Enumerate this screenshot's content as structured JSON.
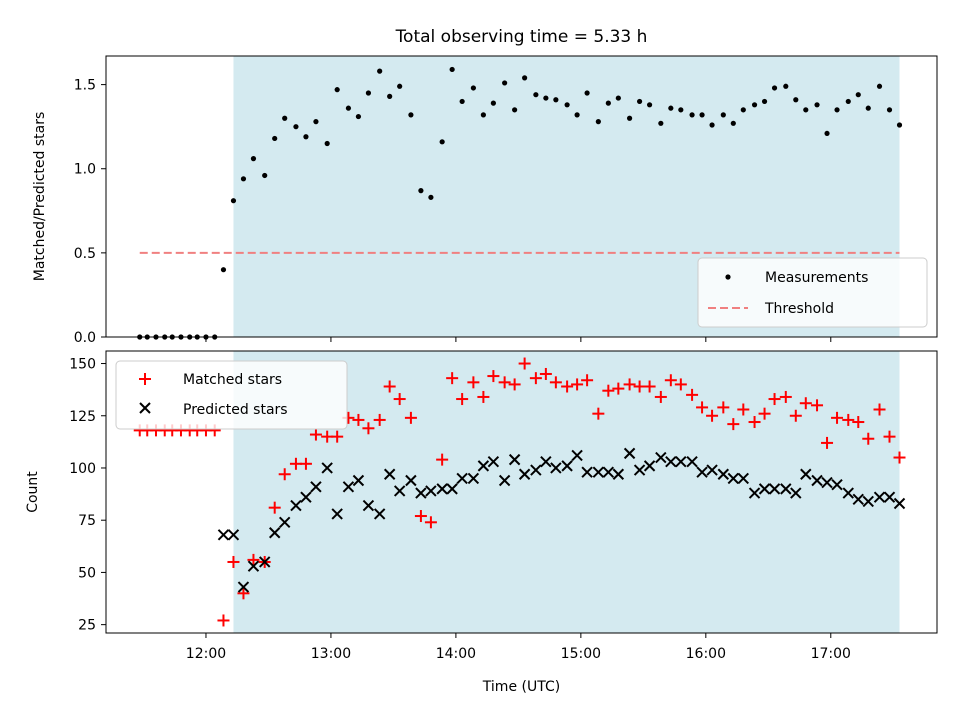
{
  "colors": {
    "shade": "#d4eaf0",
    "measurement": "#000000",
    "threshold": "#f08080",
    "matched": "#ff0000",
    "predicted": "#000000"
  },
  "chart_data": [
    {
      "type": "scatter",
      "title": "Total observing time = 5.33 h",
      "ylabel": "Matched/Predicted stars",
      "xlabel": "",
      "xlim": [
        11.2,
        17.85
      ],
      "ylim": [
        0,
        1.67
      ],
      "xticks": [
        12,
        13,
        14,
        15,
        16,
        17
      ],
      "yticks": [
        {
          "value": 0.0,
          "label": "0.0"
        },
        {
          "value": 0.5,
          "label": "0.5"
        },
        {
          "value": 1.0,
          "label": "1.0"
        },
        {
          "value": 1.5,
          "label": "1.5"
        }
      ],
      "shaded_span": [
        12.22,
        17.55
      ],
      "legend": {
        "position": "lower right",
        "entries": [
          {
            "label": "Measurements",
            "marker": "dot"
          },
          {
            "label": "Threshold",
            "marker": "dashed-line"
          }
        ]
      },
      "threshold": {
        "value": 0.5,
        "x": [
          11.47,
          17.55
        ]
      },
      "series": [
        {
          "name": "Measurements",
          "marker": "dot",
          "x": [
            11.47,
            11.53,
            11.6,
            11.67,
            11.73,
            11.8,
            11.87,
            11.93,
            12.0,
            12.07,
            12.14,
            12.22,
            12.3,
            12.38,
            12.47,
            12.55,
            12.63,
            12.72,
            12.8,
            12.88,
            12.97,
            13.05,
            13.14,
            13.22,
            13.3,
            13.39,
            13.47,
            13.55,
            13.64,
            13.72,
            13.8,
            13.89,
            13.97,
            14.05,
            14.14,
            14.22,
            14.3,
            14.39,
            14.47,
            14.55,
            14.64,
            14.72,
            14.8,
            14.89,
            14.97,
            15.05,
            15.14,
            15.22,
            15.3,
            15.39,
            15.47,
            15.55,
            15.64,
            15.72,
            15.8,
            15.89,
            15.97,
            16.05,
            16.14,
            16.22,
            16.3,
            16.39,
            16.47,
            16.55,
            16.64,
            16.72,
            16.8,
            16.89,
            16.97,
            17.05,
            17.14,
            17.22,
            17.3,
            17.39,
            17.47,
            17.55
          ],
          "y": [
            0,
            0,
            0,
            0,
            0,
            0,
            0,
            0,
            0,
            0,
            0.4,
            0.81,
            0.94,
            1.06,
            0.96,
            1.18,
            1.3,
            1.25,
            1.19,
            1.28,
            1.15,
            1.47,
            1.36,
            1.31,
            1.45,
            1.58,
            1.43,
            1.49,
            1.32,
            0.87,
            0.83,
            1.16,
            1.59,
            1.4,
            1.48,
            1.32,
            1.39,
            1.51,
            1.35,
            1.54,
            1.44,
            1.42,
            1.41,
            1.38,
            1.32,
            1.45,
            1.28,
            1.39,
            1.42,
            1.3,
            1.4,
            1.38,
            1.27,
            1.36,
            1.35,
            1.32,
            1.32,
            1.26,
            1.32,
            1.27,
            1.35,
            1.38,
            1.4,
            1.48,
            1.49,
            1.41,
            1.35,
            1.38,
            1.21,
            1.35,
            1.4,
            1.44,
            1.36,
            1.49,
            1.35,
            1.26
          ]
        }
      ]
    },
    {
      "type": "scatter",
      "title": "",
      "ylabel": "Count",
      "xlabel": "Time (UTC)",
      "xlim": [
        11.2,
        17.85
      ],
      "ylim": [
        21,
        156
      ],
      "xticks": [
        {
          "value": 12,
          "label": "12:00"
        },
        {
          "value": 13,
          "label": "13:00"
        },
        {
          "value": 14,
          "label": "14:00"
        },
        {
          "value": 15,
          "label": "15:00"
        },
        {
          "value": 16,
          "label": "16:00"
        },
        {
          "value": 17,
          "label": "17:00"
        }
      ],
      "yticks": [
        {
          "value": 25,
          "label": "25"
        },
        {
          "value": 50,
          "label": "50"
        },
        {
          "value": 75,
          "label": "75"
        },
        {
          "value": 100,
          "label": "100"
        },
        {
          "value": 125,
          "label": "125"
        },
        {
          "value": 150,
          "label": "150"
        }
      ],
      "shaded_span": [
        12.22,
        17.55
      ],
      "legend": {
        "position": "upper left",
        "entries": [
          {
            "label": "Matched stars",
            "marker": "plus"
          },
          {
            "label": "Predicted stars",
            "marker": "x"
          }
        ]
      },
      "series": [
        {
          "name": "Matched stars",
          "marker": "plus",
          "x": [
            11.47,
            11.53,
            11.6,
            11.67,
            11.73,
            11.8,
            11.87,
            11.93,
            12.0,
            12.07,
            12.14,
            12.22,
            12.3,
            12.38,
            12.47,
            12.55,
            12.63,
            12.72,
            12.8,
            12.88,
            12.97,
            13.05,
            13.14,
            13.22,
            13.3,
            13.39,
            13.47,
            13.55,
            13.64,
            13.72,
            13.8,
            13.89,
            13.97,
            14.05,
            14.14,
            14.22,
            14.3,
            14.39,
            14.47,
            14.55,
            14.64,
            14.72,
            14.8,
            14.89,
            14.97,
            15.05,
            15.14,
            15.22,
            15.3,
            15.39,
            15.47,
            15.55,
            15.64,
            15.72,
            15.8,
            15.89,
            15.97,
            16.05,
            16.14,
            16.22,
            16.3,
            16.39,
            16.47,
            16.55,
            16.64,
            16.72,
            16.8,
            16.89,
            16.97,
            17.05,
            17.14,
            17.22,
            17.3,
            17.39,
            17.47,
            17.55
          ],
          "y": [
            118,
            118,
            118,
            118,
            118,
            118,
            118,
            118,
            118,
            118,
            27,
            55,
            40,
            56,
            55,
            81,
            97,
            102,
            102,
            116,
            115,
            115,
            124,
            123,
            119,
            123,
            139,
            133,
            124,
            77,
            74,
            104,
            143,
            133,
            141,
            134,
            144,
            141,
            140,
            150,
            143,
            145,
            141,
            139,
            140,
            142,
            126,
            137,
            138,
            140,
            139,
            139,
            134,
            142,
            140,
            135,
            129,
            125,
            129,
            121,
            128,
            122,
            126,
            133,
            134,
            125,
            131,
            130,
            112,
            124,
            123,
            122,
            114,
            128,
            115,
            105
          ]
        },
        {
          "name": "Predicted stars",
          "marker": "x",
          "x": [
            12.14,
            12.22,
            12.3,
            12.38,
            12.47,
            12.55,
            12.63,
            12.72,
            12.8,
            12.88,
            12.97,
            13.05,
            13.14,
            13.22,
            13.3,
            13.39,
            13.47,
            13.55,
            13.64,
            13.72,
            13.8,
            13.89,
            13.97,
            14.05,
            14.14,
            14.22,
            14.3,
            14.39,
            14.47,
            14.55,
            14.64,
            14.72,
            14.8,
            14.89,
            14.97,
            15.05,
            15.14,
            15.22,
            15.3,
            15.39,
            15.47,
            15.55,
            15.64,
            15.72,
            15.8,
            15.89,
            15.97,
            16.05,
            16.14,
            16.22,
            16.3,
            16.39,
            16.47,
            16.55,
            16.64,
            16.72,
            16.8,
            16.89,
            16.97,
            17.05,
            17.14,
            17.22,
            17.3,
            17.39,
            17.47,
            17.55
          ],
          "y": [
            68,
            68,
            43,
            53,
            55,
            69,
            74,
            82,
            86,
            91,
            100,
            78,
            91,
            94,
            82,
            78,
            97,
            89,
            94,
            88,
            89,
            90,
            90,
            95,
            95,
            101,
            103,
            94,
            104,
            97,
            99,
            103,
            100,
            101,
            106,
            98,
            98,
            98,
            97,
            107,
            99,
            101,
            105,
            103,
            103,
            103,
            98,
            99,
            97,
            95,
            95,
            88,
            90,
            90,
            90,
            88,
            97,
            94,
            93,
            92,
            88,
            85,
            84,
            86,
            86,
            83
          ]
        }
      ]
    }
  ]
}
